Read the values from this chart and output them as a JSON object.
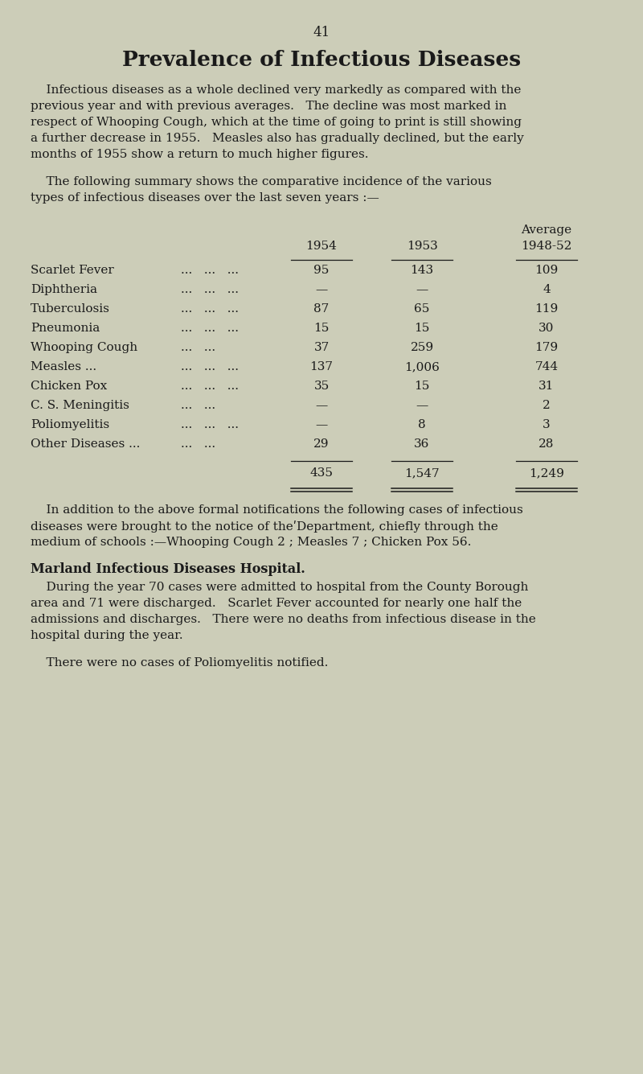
{
  "bg_color": "#cccdb8",
  "page_number": "41",
  "title": "Prevalence of Infectious Diseases",
  "para1_lines": [
    "    Infectious diseases as a whole declined very markedly as compared with the",
    "previous year and with previous averages.   The decline was most marked in",
    "respect of Whooping Cough, which at the time of going to print is still showing",
    "a further decrease in 1955.   Measles also has gradually declined, but the early",
    "months of 1955 show a return to much higher figures."
  ],
  "para2_lines": [
    "    The following summary shows the comparative incidence of the various",
    "types of infectious diseases over the last seven years :—"
  ],
  "diseases": [
    "Scarlet Fever",
    "Diphtheria",
    "Tuberculosis",
    "Pneumonia",
    "Whooping Cough",
    "Measles ...",
    "Chicken Pox",
    "C. S. Meningitis",
    "Poliomyelitis",
    "Other Diseases ..."
  ],
  "dots": [
    "...   ...   ...",
    "...   ...   ...",
    "...   ...   ...",
    "...   ...   ...",
    "...   ...",
    "...   ...   ...",
    "...   ...   ...",
    "...   ...",
    "...   ...   ...",
    "...   ..."
  ],
  "col1954": [
    "95",
    "—",
    "87",
    "15",
    "37",
    "137",
    "35",
    "—",
    "—",
    "29"
  ],
  "col1953": [
    "143",
    "—",
    "65",
    "15",
    "259",
    "1,006",
    "15",
    "—",
    "8",
    "36"
  ],
  "col194852": [
    "109",
    "4",
    "119",
    "30",
    "179",
    "744",
    "31",
    "2",
    "3",
    "28"
  ],
  "total1954": "435",
  "total1953": "1,547",
  "total194852": "1,249",
  "para3_lines": [
    "    In addition to the above formal notifications the following cases of infectious",
    "diseases were brought to the notice of theʹDepartment, chiefly through the",
    "medium of schools :—Whooping Cough 2 ; Measles 7 ; Chicken Pox 56."
  ],
  "section_title": "Marland Infectious Diseases Hospital.",
  "para4_lines": [
    "    During the year 70 cases were admitted to hospital from the County Borough",
    "area and 71 were discharged.   Scarlet Fever accounted for nearly one half the",
    "admissions and discharges.   There were no deaths from infectious disease in the",
    "hospital during the year."
  ],
  "para5": "    There were no cases of Poliomyelitis notified."
}
